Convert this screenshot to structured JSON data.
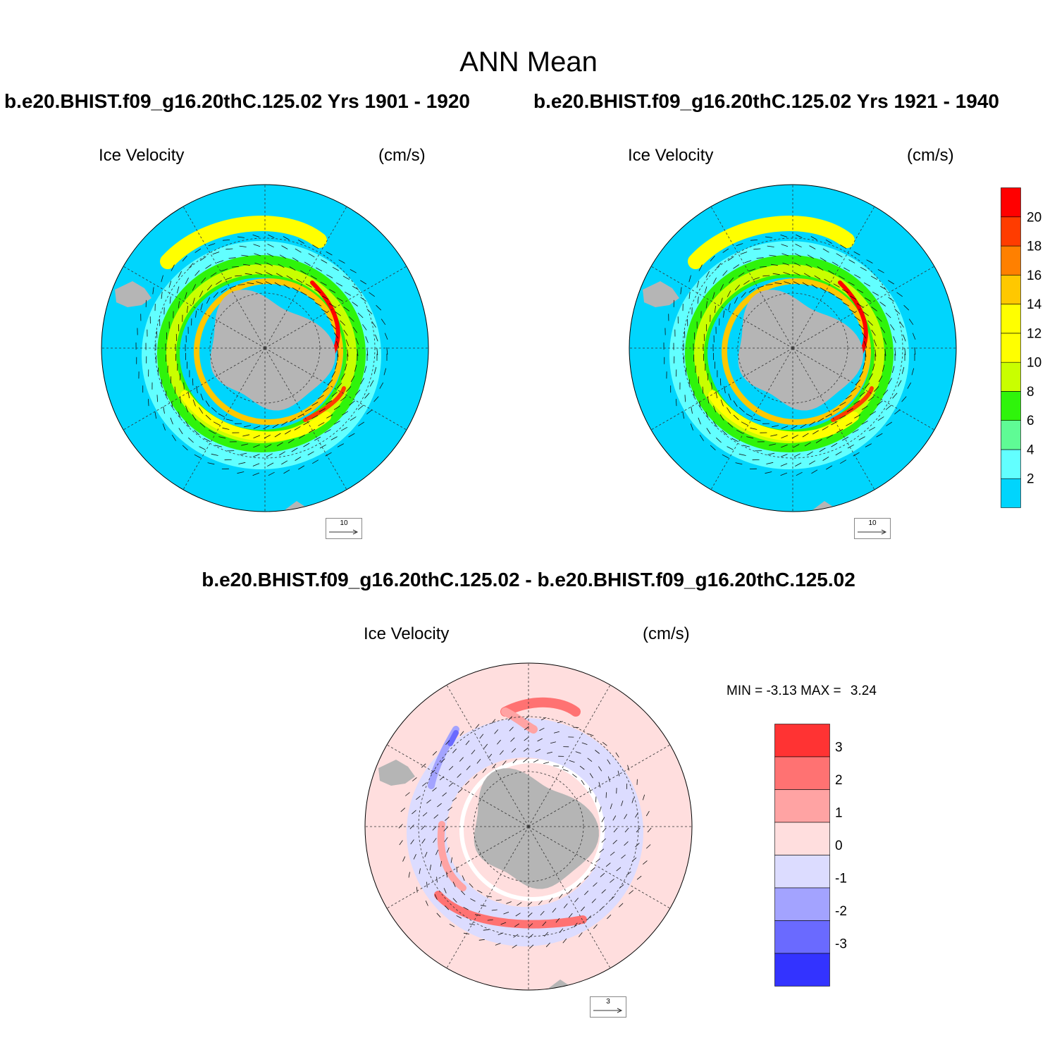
{
  "title": "ANN Mean",
  "panels": [
    {
      "id": "p1",
      "case_title": "b.e20.BHIST.f09_g16.20thC.125.02  Yrs 1901 - 1920",
      "variable": "Ice Velocity",
      "units": "(cm/s)",
      "ref_vector": "10"
    },
    {
      "id": "p2",
      "case_title": "b.e20.BHIST.f09_g16.20thC.125.02  Yrs 1921 - 1940",
      "variable": "Ice Velocity",
      "units": "(cm/s)",
      "ref_vector": "10"
    },
    {
      "id": "p3",
      "case_title": "b.e20.BHIST.f09_g16.20thC.125.02 - b.e20.BHIST.f09_g16.20thC.125.02",
      "variable": "Ice Velocity",
      "units": "(cm/s)",
      "ref_vector": "3",
      "min_label": "MIN =",
      "min_value": "-3.13",
      "max_label": "MAX =",
      "max_value": "3.24"
    }
  ],
  "colorbar_speed": {
    "colors": [
      "#00d5fd",
      "#62ffff",
      "#5ffb95",
      "#2ff40b",
      "#c9ff00",
      "#ffff00",
      "#ffff00",
      "#ffc800",
      "#ff8000",
      "#ff3c00",
      "#ff0000"
    ],
    "labels": [
      "2",
      "4",
      "6",
      "8",
      "10",
      "12",
      "14",
      "16",
      "18",
      "20"
    ]
  },
  "colorbar_diff": {
    "colors": [
      "#ff3333",
      "#ff7272",
      "#ffa3a3",
      "#ffdede",
      "#dcdcff",
      "#a3a3ff",
      "#6a6aff",
      "#3333ff"
    ],
    "labels": [
      "3",
      "2",
      "1",
      "0",
      "-1",
      "-2",
      "-3"
    ]
  },
  "map_colors": {
    "ocean_speed": "#00d5fd",
    "land": "#b5b5b5",
    "ocean_diff": "#ffdede"
  }
}
